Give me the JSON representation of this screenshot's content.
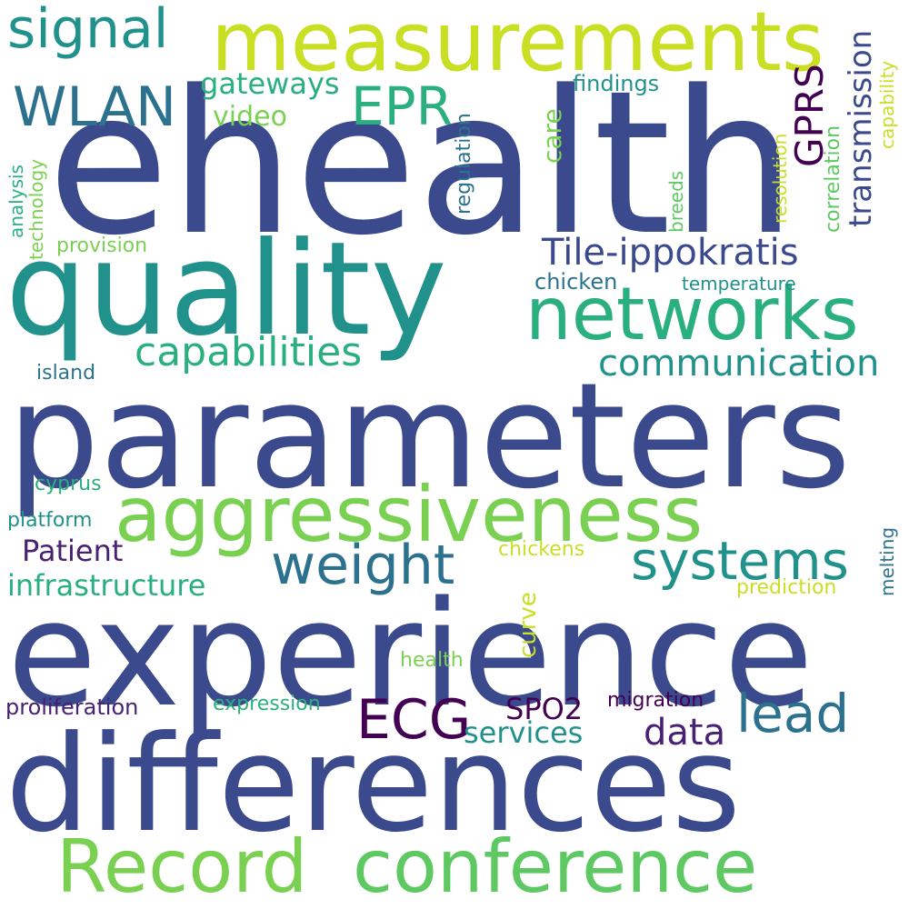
{
  "palette": {
    "indigo": "#3b4a8c",
    "teal": "#21918c",
    "lime": "#c8df24",
    "green": "#7ad151",
    "mid_green": "#5ec962",
    "sea": "#2ab07f",
    "purple": "#440154",
    "dark_purple": "#482173",
    "blue_teal": "#2c728e",
    "background": "#ffffff"
  },
  "words": {
    "ehealth": "ehealth",
    "quality": "quality",
    "parameters": "parameters",
    "experience": "experience",
    "differences": "differences",
    "measurements": "measurements",
    "aggressiveness": "aggressiveness",
    "networks": "networks",
    "record": "Record",
    "conference": "conference",
    "signal": "signal",
    "wlan": "WLAN",
    "epr": "EPR",
    "gprs": "GPRS",
    "transmission": "transmission",
    "tile_ippokratis": "Tile-ippokratis",
    "capabilities": "capabilities",
    "communication": "communication",
    "weight": "weight",
    "systems": "systems",
    "ecg": "ECG",
    "lead": "lead",
    "data": "data",
    "spo2": "SPO2",
    "services": "services",
    "patient": "Patient",
    "infrastructure": "infrastructure",
    "gateways": "gateways",
    "video": "video",
    "findings": "findings",
    "care": "care",
    "regulation": "regulation",
    "correlation": "correlation",
    "capability": "capability",
    "resolution": "resolution",
    "breeds": "breeds",
    "analysis": "analysis",
    "technology": "technology",
    "provision": "provision",
    "chicken": "chicken",
    "temperature": "temperature",
    "island": "island",
    "cyprus": "cyprus",
    "platform": "platform",
    "curve": "curve",
    "chickens": "chickens",
    "melting": "melting",
    "prediction": "prediction",
    "health": "health",
    "proliferation": "proliferation",
    "expression": "expression",
    "migration": "migration"
  }
}
